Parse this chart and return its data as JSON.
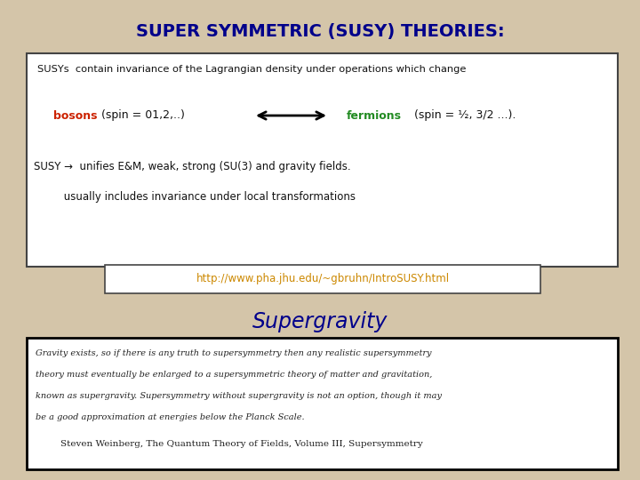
{
  "bg_color": "#d4c5a9",
  "title": "SUPER SYMMETRIC (SUSY) THEORIES:",
  "title_color": "#00008B",
  "title_fontsize": 14,
  "box1_text_line1": "SUSYs  contain invariance of the Lagrangian density under operations which change",
  "bosons_label": "bosons",
  "bosons_color": "#cc2200",
  "bosons_rest": " (spin = 01,2,..)",
  "fermions_label": "fermions",
  "fermions_color": "#228B22",
  "fermions_rest": " (spin = ½, 3/2 ...).",
  "susy_line1": "SUSY →  unifies E&M, weak, strong (SU(3) and gravity fields.",
  "susy_line2": "         usually includes invariance under local transformations",
  "url_text": "http://www.pha.jhu.edu/~gbruhn/IntroSUSY.html",
  "url_color": "#cc8800",
  "supergravity_title": "Supergravity",
  "supergravity_color": "#00008B",
  "quote_line1": "Gravity exists, so if there is any truth to supersymmetry then any realistic supersymmetry",
  "quote_line2": "theory must eventually be enlarged to a supersymmetric theory of matter and gravitation,",
  "quote_line3": "known as supergravity. Supersymmetry without supergravity is not an option, though it may",
  "quote_line4": "be a good approximation at energies below the Planck Scale.",
  "citation": "    Steven Weinberg, The Quantum Theory of Fields, Volume III, Supersymmetry",
  "box_edge_color": "#444444",
  "white_box_color": "#ffffff",
  "text_color": "#111111"
}
